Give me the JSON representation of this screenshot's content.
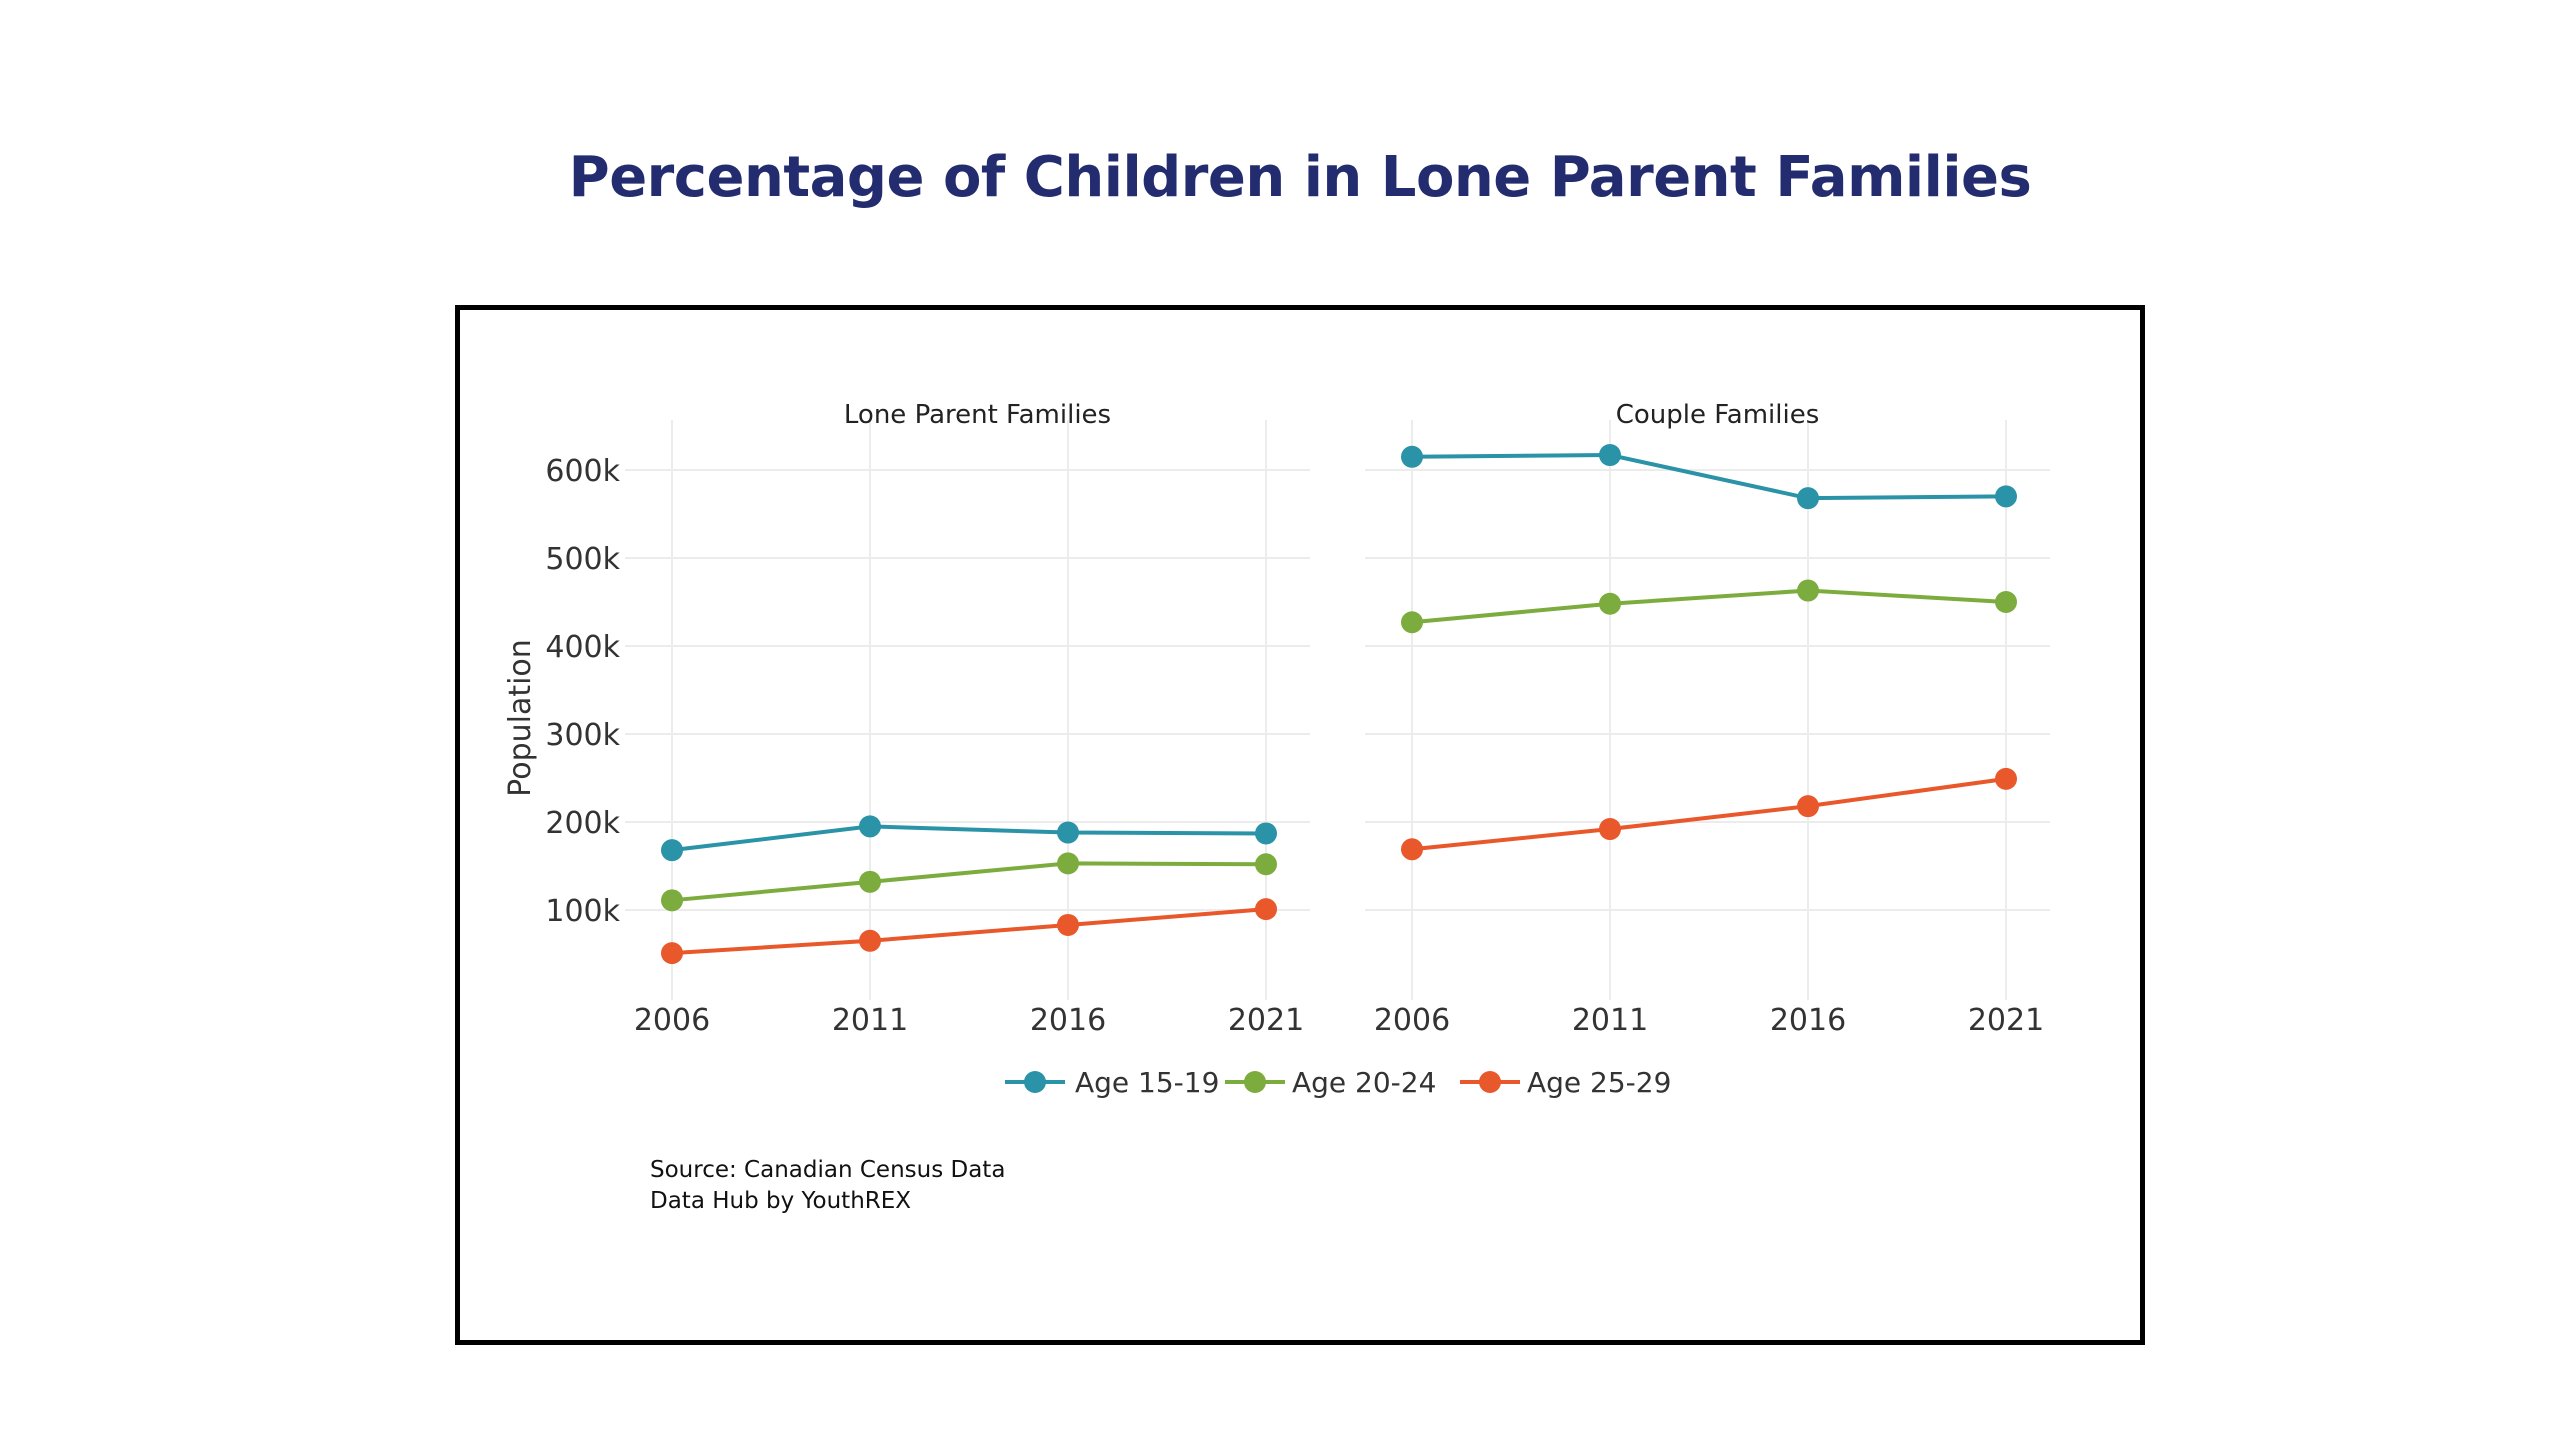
{
  "title": "Percentage of Children in Lone Parent Families",
  "source_lines": [
    "Source: Canadian Census Data",
    "Data Hub by YouthREX"
  ],
  "colors": {
    "title": "#232c6e",
    "Age 15-19": "#2a93a7",
    "Age 20-24": "#7cac3d",
    "Age 25-29": "#e8582b",
    "grid": "#ececec"
  },
  "chart_data": {
    "type": "line",
    "ylabel": "Population",
    "ylim": [
      0,
      650000
    ],
    "yticks": [
      100000,
      200000,
      300000,
      400000,
      500000,
      600000
    ],
    "ytick_labels": [
      "100k",
      "200k",
      "300k",
      "400k",
      "500k",
      "600k"
    ],
    "x": [
      2006,
      2011,
      2016,
      2021
    ],
    "xtick_labels": [
      "2006",
      "2011",
      "2016",
      "2021"
    ],
    "legend": {
      "position": "bottom",
      "entries": [
        "Age 15-19",
        "Age 20-24",
        "Age 25-29"
      ]
    },
    "panels": [
      {
        "title": "Lone Parent Families",
        "series": [
          {
            "name": "Age 15-19",
            "values": [
              168000,
              195000,
              188000,
              187000
            ]
          },
          {
            "name": "Age 20-24",
            "values": [
              111000,
              132000,
              153000,
              152000
            ]
          },
          {
            "name": "Age 25-29",
            "values": [
              51000,
              65000,
              83000,
              101000
            ]
          }
        ]
      },
      {
        "title": "Couple Families",
        "series": [
          {
            "name": "Age 15-19",
            "values": [
              615000,
              617000,
              568000,
              570000
            ]
          },
          {
            "name": "Age 20-24",
            "values": [
              427000,
              448000,
              463000,
              450000
            ]
          },
          {
            "name": "Age 25-29",
            "values": [
              169000,
              192000,
              218000,
              249000
            ]
          }
        ]
      }
    ]
  }
}
